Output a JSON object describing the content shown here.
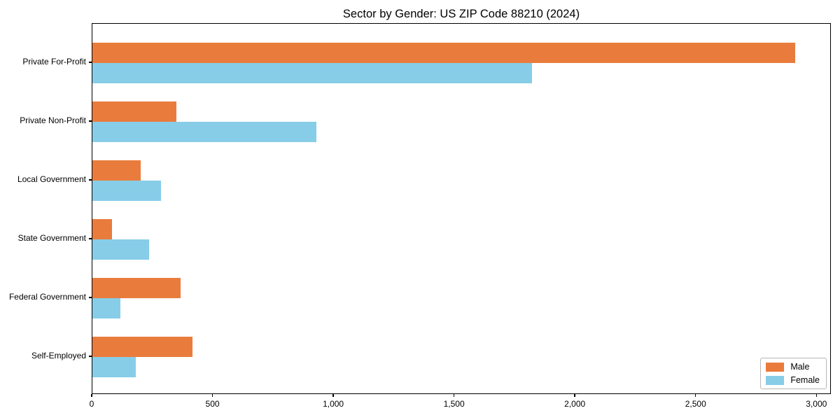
{
  "chart_data": {
    "type": "bar",
    "orientation": "horizontal",
    "title": "Sector by Gender: US ZIP Code 88210 (2024)",
    "categories": [
      "Private For-Profit",
      "Private Non-Profit",
      "Local Government",
      "State Government",
      "Federal Government",
      "Self-Employed"
    ],
    "series": [
      {
        "name": "Male",
        "color": "#E97C3C",
        "values": [
          2910,
          348,
          201,
          82,
          364,
          414
        ]
      },
      {
        "name": "Female",
        "color": "#87CDE8",
        "values": [
          1820,
          928,
          283,
          236,
          115,
          181
        ]
      }
    ],
    "xlabel": "",
    "ylabel": "",
    "xlim": [
      0,
      3060
    ],
    "x_ticks": [
      0,
      500,
      1000,
      1500,
      2000,
      2500,
      3000
    ],
    "x_tick_labels": [
      "0",
      "500",
      "1,000",
      "1,500",
      "2,000",
      "2,500",
      "3,000"
    ],
    "grid": false,
    "legend_position": "lower right",
    "background_color": "#ffffff",
    "axis_color": "#000000"
  }
}
